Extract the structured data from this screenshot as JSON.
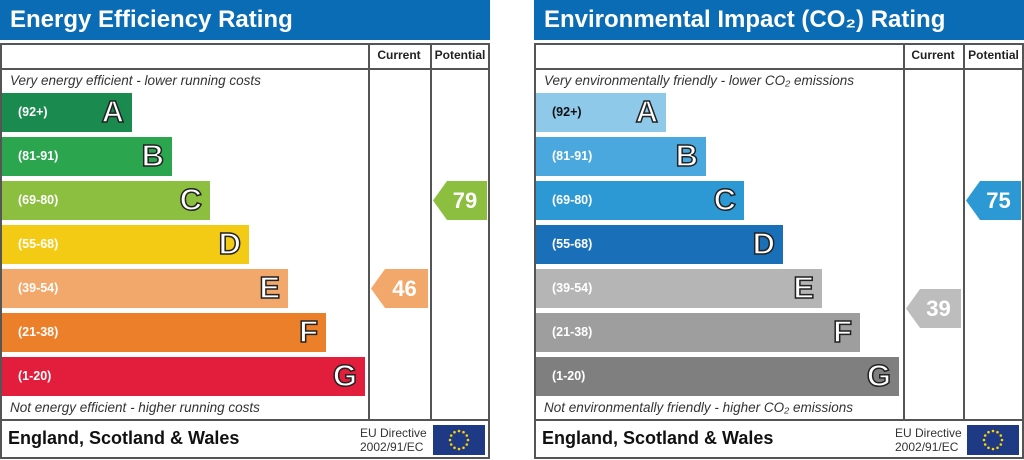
{
  "chart_data": [
    {
      "type": "bar",
      "title": "Energy Efficiency Rating",
      "columns": [
        "Current",
        "Potential"
      ],
      "top_note": "Very energy efficient - lower running costs",
      "bottom_note": "Not energy efficient - higher running costs",
      "bands": [
        {
          "range": "(92+)",
          "letter": "A",
          "color": "#1a8a4e"
        },
        {
          "range": "(81-91)",
          "letter": "B",
          "color": "#2ba64f"
        },
        {
          "range": "(69-80)",
          "letter": "C",
          "color": "#8cbe3f"
        },
        {
          "range": "(55-68)",
          "letter": "D",
          "color": "#f4cb14"
        },
        {
          "range": "(39-54)",
          "letter": "E",
          "color": "#f2a86a"
        },
        {
          "range": "(21-38)",
          "letter": "F",
          "color": "#ec7f2a"
        },
        {
          "range": "(1-20)",
          "letter": "G",
          "color": "#e31d3c"
        }
      ],
      "current": {
        "value": "46",
        "band": "E",
        "color": "#f2a86a"
      },
      "potential": {
        "value": "79",
        "band": "C",
        "color": "#8cbe3f"
      },
      "footer": "England, Scotland & Wales",
      "directive": [
        "EU Directive",
        "2002/91/EC"
      ]
    },
    {
      "type": "bar",
      "title": "Environmental Impact (CO₂) Rating",
      "columns": [
        "Current",
        "Potential"
      ],
      "top_note": "Very environmentally friendly - lower CO₂ emissions",
      "bottom_note": "Not environmentally friendly - higher CO₂ emissions",
      "bands": [
        {
          "range": "(92+)",
          "letter": "A",
          "color": "#8fc9ea"
        },
        {
          "range": "(81-91)",
          "letter": "B",
          "color": "#4ba8de"
        },
        {
          "range": "(69-80)",
          "letter": "C",
          "color": "#2c99d4"
        },
        {
          "range": "(55-68)",
          "letter": "D",
          "color": "#1a70b8"
        },
        {
          "range": "(39-54)",
          "letter": "E",
          "color": "#b5b5b5"
        },
        {
          "range": "(21-38)",
          "letter": "F",
          "color": "#9e9e9e"
        },
        {
          "range": "(1-20)",
          "letter": "G",
          "color": "#7f7f7f"
        }
      ],
      "current": {
        "value": "39",
        "band": "E",
        "color": "#bdbdbd"
      },
      "potential": {
        "value": "75",
        "band": "C",
        "color": "#2c99d4"
      },
      "footer": "England, Scotland & Wales",
      "directive": [
        "EU Directive",
        "2002/91/EC"
      ]
    }
  ]
}
